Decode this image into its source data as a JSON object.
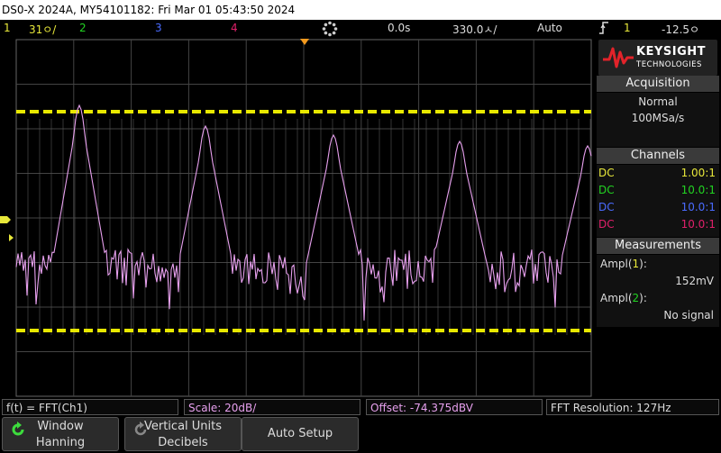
{
  "titlebar": {
    "text": "DS0-X 2024A, MY54101182: Fri Mar 01 05:43:50 2024"
  },
  "status": {
    "ch1_num": "1",
    "ch1_scale": "31ㅇ/",
    "ch2_num": "2",
    "ch3_num": "3",
    "ch4_num": "4",
    "time_pos": "0.0s",
    "time_scale": "330.0ㅅ/",
    "trigger_mode": "Auto",
    "trigger_icon": "trigger-edge-icon",
    "trigger_source": "1",
    "trigger_level": "-12.5ㅇ"
  },
  "logo": {
    "brand": "KEYSIGHT",
    "sub": "TECHNOLOGIES"
  },
  "acquisition": {
    "header": "Acquisition",
    "mode": "Normal",
    "rate": "100MSa/s"
  },
  "channels": {
    "header": "Channels",
    "rows": [
      {
        "coupling": "DC",
        "probe": "1.00:1",
        "color": "#e8e83a"
      },
      {
        "coupling": "DC",
        "probe": "10.0:1",
        "color": "#22d322"
      },
      {
        "coupling": "DC",
        "probe": "10.0:1",
        "color": "#4a6bff"
      },
      {
        "coupling": "DC",
        "probe": "10.0:1",
        "color": "#e0206a"
      }
    ]
  },
  "measurements": {
    "header": "Measurements",
    "m1_label": "Ampl(",
    "m1_ch": "1",
    "m1_close": "):",
    "m1_value": "152mV",
    "m2_label": "Ampl(",
    "m2_ch": "2",
    "m2_close": "):",
    "m2_value": "No signal"
  },
  "bottom": {
    "func": "f(t) = FFT(Ch1)",
    "scale": "Scale: 20dB/",
    "offset": "Offset: -74.375dBV",
    "resolution": "FFT Resolution: 127Hz"
  },
  "softkeys": {
    "window_title": "Window",
    "window_value": "Hanning",
    "vunits_title": "Vertical Units",
    "vunits_value": "Decibels",
    "autosetup": "Auto Setup"
  },
  "colors": {
    "ch1": "#e8e83a",
    "ch2": "#22d322",
    "ch3": "#4a6bff",
    "ch4": "#e0206a",
    "math": "#e7a0ee"
  }
}
